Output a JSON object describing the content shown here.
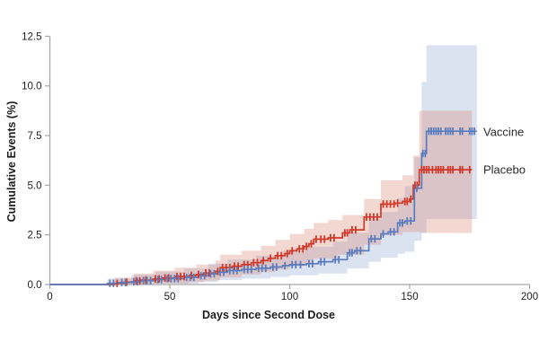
{
  "chart_data": {
    "type": "line",
    "subtype": "kaplan-meier-step-curves-with-confidence-bands",
    "title": "",
    "xlabel": "Days since Second Dose",
    "ylabel": "Cumulative Events (%)",
    "xlim": [
      0,
      200
    ],
    "ylim": [
      0,
      12.5
    ],
    "xticks": [
      "0",
      "50",
      "100",
      "150",
      "200"
    ],
    "yticks": [
      "0.0",
      "2.5",
      "5.0",
      "7.5",
      "10.0",
      "12.5"
    ],
    "grid": "off",
    "legend_position": "right-end-of-lines",
    "axis_color": "#a6a6a6",
    "text_color": "#1c1c1c",
    "series": [
      {
        "name": "Vaccine",
        "color": "#5a7cbd",
        "band_fill": "rgba(125,155,205,0.28)",
        "end_day": 178,
        "final_value_pct": 7.72,
        "steps": [
          [
            0,
            0
          ],
          [
            24,
            0.06
          ],
          [
            28,
            0.1
          ],
          [
            34,
            0.14
          ],
          [
            38,
            0.2
          ],
          [
            44,
            0.25
          ],
          [
            48,
            0.3
          ],
          [
            56,
            0.36
          ],
          [
            62,
            0.44
          ],
          [
            66,
            0.54
          ],
          [
            70,
            0.62
          ],
          [
            74,
            0.7
          ],
          [
            80,
            0.76
          ],
          [
            86,
            0.82
          ],
          [
            92,
            0.88
          ],
          [
            97,
            0.95
          ],
          [
            100,
            1.0
          ],
          [
            107,
            1.05
          ],
          [
            112,
            1.15
          ],
          [
            118,
            1.25
          ],
          [
            124,
            1.6
          ],
          [
            127,
            1.7
          ],
          [
            133,
            2.3
          ],
          [
            138,
            2.55
          ],
          [
            141,
            2.65
          ],
          [
            145,
            3.1
          ],
          [
            148,
            3.2
          ],
          [
            152,
            4.85
          ],
          [
            155,
            6.6
          ],
          [
            157,
            7.72
          ]
        ],
        "ci_upper": [
          [
            0,
            0
          ],
          [
            24,
            0.3
          ],
          [
            34,
            0.5
          ],
          [
            44,
            0.65
          ],
          [
            56,
            0.8
          ],
          [
            66,
            1.05
          ],
          [
            74,
            1.25
          ],
          [
            86,
            1.45
          ],
          [
            97,
            1.7
          ],
          [
            107,
            1.9
          ],
          [
            118,
            2.15
          ],
          [
            124,
            2.6
          ],
          [
            133,
            3.3
          ],
          [
            138,
            3.65
          ],
          [
            145,
            4.35
          ],
          [
            148,
            4.95
          ],
          [
            152,
            6.4
          ],
          [
            155,
            10.2
          ],
          [
            157,
            12.05
          ]
        ],
        "ci_lower": [
          [
            0,
            0
          ],
          [
            44,
            0.04
          ],
          [
            62,
            0.12
          ],
          [
            70,
            0.22
          ],
          [
            80,
            0.3
          ],
          [
            92,
            0.38
          ],
          [
            100,
            0.46
          ],
          [
            112,
            0.55
          ],
          [
            124,
            0.8
          ],
          [
            133,
            1.15
          ],
          [
            138,
            1.35
          ],
          [
            145,
            1.55
          ],
          [
            148,
            1.65
          ],
          [
            152,
            2.2
          ],
          [
            155,
            2.6
          ],
          [
            157,
            3.3
          ]
        ],
        "censor_ticks": [
          [
            25,
            0.06
          ],
          [
            26.5,
            0.06
          ],
          [
            30,
            0.1
          ],
          [
            31.5,
            0.1
          ],
          [
            35,
            0.14
          ],
          [
            36.5,
            0.14
          ],
          [
            39,
            0.2
          ],
          [
            40.5,
            0.2
          ],
          [
            42,
            0.2
          ],
          [
            45,
            0.25
          ],
          [
            46.5,
            0.25
          ],
          [
            49,
            0.3
          ],
          [
            50.5,
            0.3
          ],
          [
            52,
            0.3
          ],
          [
            53.5,
            0.3
          ],
          [
            57,
            0.36
          ],
          [
            58.5,
            0.36
          ],
          [
            60,
            0.36
          ],
          [
            63,
            0.44
          ],
          [
            64.5,
            0.44
          ],
          [
            67,
            0.54
          ],
          [
            68.5,
            0.54
          ],
          [
            71,
            0.62
          ],
          [
            72.5,
            0.62
          ],
          [
            75,
            0.7
          ],
          [
            76.5,
            0.7
          ],
          [
            78,
            0.7
          ],
          [
            81,
            0.76
          ],
          [
            82.5,
            0.76
          ],
          [
            84,
            0.76
          ],
          [
            87,
            0.82
          ],
          [
            88.5,
            0.82
          ],
          [
            90,
            0.82
          ],
          [
            93,
            0.88
          ],
          [
            94.5,
            0.88
          ],
          [
            98,
            0.95
          ],
          [
            101,
            1.0
          ],
          [
            102.5,
            1.0
          ],
          [
            104.5,
            1.0
          ],
          [
            108,
            1.05
          ],
          [
            109.5,
            1.05
          ],
          [
            113,
            1.15
          ],
          [
            114.5,
            1.15
          ],
          [
            119,
            1.25
          ],
          [
            120.5,
            1.25
          ],
          [
            125,
            1.6
          ],
          [
            126,
            1.6
          ],
          [
            128,
            1.7
          ],
          [
            129.5,
            1.7
          ],
          [
            134,
            2.3
          ],
          [
            135.5,
            2.3
          ],
          [
            139,
            2.55
          ],
          [
            142,
            2.65
          ],
          [
            143.5,
            2.65
          ],
          [
            146,
            3.1
          ],
          [
            147,
            3.1
          ],
          [
            149,
            3.2
          ],
          [
            150.5,
            3.2
          ],
          [
            153,
            4.85
          ],
          [
            155.5,
            6.6
          ],
          [
            156.5,
            6.6
          ],
          [
            158,
            7.72
          ],
          [
            159,
            7.72
          ],
          [
            160,
            7.72
          ],
          [
            161,
            7.72
          ],
          [
            162,
            7.72
          ],
          [
            163,
            7.72
          ],
          [
            165,
            7.72
          ],
          [
            166,
            7.72
          ],
          [
            167,
            7.72
          ],
          [
            168,
            7.72
          ],
          [
            171,
            7.72
          ],
          [
            172,
            7.72
          ],
          [
            175,
            7.72
          ],
          [
            176,
            7.72
          ],
          [
            177,
            7.72
          ]
        ]
      },
      {
        "name": "Placebo",
        "color": "#d03928",
        "band_fill": "rgba(215,125,105,0.30)",
        "end_day": 176,
        "final_value_pct": 5.78,
        "steps": [
          [
            0,
            0
          ],
          [
            27,
            0.06
          ],
          [
            31,
            0.12
          ],
          [
            35,
            0.18
          ],
          [
            38,
            0.22
          ],
          [
            43,
            0.28
          ],
          [
            47,
            0.33
          ],
          [
            52,
            0.4
          ],
          [
            58,
            0.45
          ],
          [
            61,
            0.5
          ],
          [
            64,
            0.58
          ],
          [
            69,
            0.66
          ],
          [
            71,
            0.85
          ],
          [
            76,
            0.92
          ],
          [
            80,
            1.0
          ],
          [
            84,
            1.1
          ],
          [
            88,
            1.2
          ],
          [
            91,
            1.32
          ],
          [
            94,
            1.45
          ],
          [
            98,
            1.56
          ],
          [
            100,
            1.7
          ],
          [
            103,
            1.8
          ],
          [
            106,
            1.92
          ],
          [
            108,
            2.05
          ],
          [
            110,
            2.28
          ],
          [
            116,
            2.35
          ],
          [
            122,
            2.6
          ],
          [
            125,
            2.75
          ],
          [
            131,
            3.4
          ],
          [
            138,
            4.05
          ],
          [
            144,
            4.1
          ],
          [
            147,
            4.18
          ],
          [
            150,
            4.3
          ],
          [
            151.5,
            5.0
          ],
          [
            154,
            5.78
          ]
        ],
        "ci_upper": [
          [
            0,
            0
          ],
          [
            27,
            0.35
          ],
          [
            35,
            0.55
          ],
          [
            43,
            0.7
          ],
          [
            52,
            0.85
          ],
          [
            61,
            1.0
          ],
          [
            69,
            1.2
          ],
          [
            71,
            1.5
          ],
          [
            80,
            1.7
          ],
          [
            88,
            1.95
          ],
          [
            94,
            2.25
          ],
          [
            100,
            2.55
          ],
          [
            106,
            2.8
          ],
          [
            110,
            3.1
          ],
          [
            116,
            3.25
          ],
          [
            122,
            3.5
          ],
          [
            131,
            4.3
          ],
          [
            138,
            5.25
          ],
          [
            147,
            5.5
          ],
          [
            151.5,
            6.5
          ],
          [
            154,
            8.75
          ]
        ],
        "ci_lower": [
          [
            0,
            0
          ],
          [
            43,
            0.05
          ],
          [
            58,
            0.12
          ],
          [
            64,
            0.2
          ],
          [
            71,
            0.35
          ],
          [
            80,
            0.5
          ],
          [
            88,
            0.62
          ],
          [
            94,
            0.75
          ],
          [
            100,
            0.92
          ],
          [
            106,
            1.05
          ],
          [
            110,
            1.3
          ],
          [
            120,
            1.5
          ],
          [
            131,
            2.0
          ],
          [
            138,
            2.5
          ],
          [
            147,
            2.65
          ],
          [
            154,
            2.6
          ]
        ],
        "censor_ticks": [
          [
            28,
            0.06
          ],
          [
            32,
            0.12
          ],
          [
            36,
            0.18
          ],
          [
            37.5,
            0.18
          ],
          [
            40,
            0.22
          ],
          [
            44,
            0.28
          ],
          [
            45.5,
            0.28
          ],
          [
            48,
            0.33
          ],
          [
            49.5,
            0.33
          ],
          [
            53,
            0.4
          ],
          [
            54.5,
            0.4
          ],
          [
            56,
            0.4
          ],
          [
            59,
            0.45
          ],
          [
            62,
            0.5
          ],
          [
            65,
            0.58
          ],
          [
            66.5,
            0.58
          ],
          [
            70,
            0.66
          ],
          [
            72,
            0.85
          ],
          [
            73.5,
            0.85
          ],
          [
            75,
            0.85
          ],
          [
            77,
            0.92
          ],
          [
            78.5,
            0.92
          ],
          [
            81,
            1.0
          ],
          [
            82.5,
            1.0
          ],
          [
            85,
            1.1
          ],
          [
            86.5,
            1.1
          ],
          [
            89,
            1.2
          ],
          [
            92,
            1.32
          ],
          [
            95,
            1.45
          ],
          [
            96.5,
            1.45
          ],
          [
            99,
            1.56
          ],
          [
            101,
            1.7
          ],
          [
            104,
            1.8
          ],
          [
            105.5,
            1.8
          ],
          [
            107,
            1.92
          ],
          [
            109,
            2.05
          ],
          [
            111,
            2.28
          ],
          [
            113,
            2.28
          ],
          [
            114.5,
            2.28
          ],
          [
            117,
            2.35
          ],
          [
            118.5,
            2.35
          ],
          [
            123,
            2.6
          ],
          [
            124,
            2.6
          ],
          [
            126,
            2.75
          ],
          [
            127.5,
            2.75
          ],
          [
            132,
            3.4
          ],
          [
            133.5,
            3.4
          ],
          [
            135,
            3.4
          ],
          [
            136.5,
            3.4
          ],
          [
            139,
            4.05
          ],
          [
            140.5,
            4.05
          ],
          [
            142,
            4.05
          ],
          [
            143.5,
            4.05
          ],
          [
            145,
            4.1
          ],
          [
            148,
            4.18
          ],
          [
            149,
            4.18
          ],
          [
            150.5,
            4.3
          ],
          [
            152.2,
            5.0
          ],
          [
            153.2,
            5.0
          ],
          [
            155,
            5.78
          ],
          [
            156,
            5.78
          ],
          [
            157,
            5.78
          ],
          [
            158,
            5.78
          ],
          [
            159.5,
            5.78
          ],
          [
            161,
            5.78
          ],
          [
            162,
            5.78
          ],
          [
            163,
            5.78
          ],
          [
            164,
            5.78
          ],
          [
            166,
            5.78
          ],
          [
            167,
            5.78
          ],
          [
            168,
            5.78
          ],
          [
            171,
            5.78
          ],
          [
            172,
            5.78
          ],
          [
            175,
            5.78
          ]
        ]
      }
    ]
  }
}
